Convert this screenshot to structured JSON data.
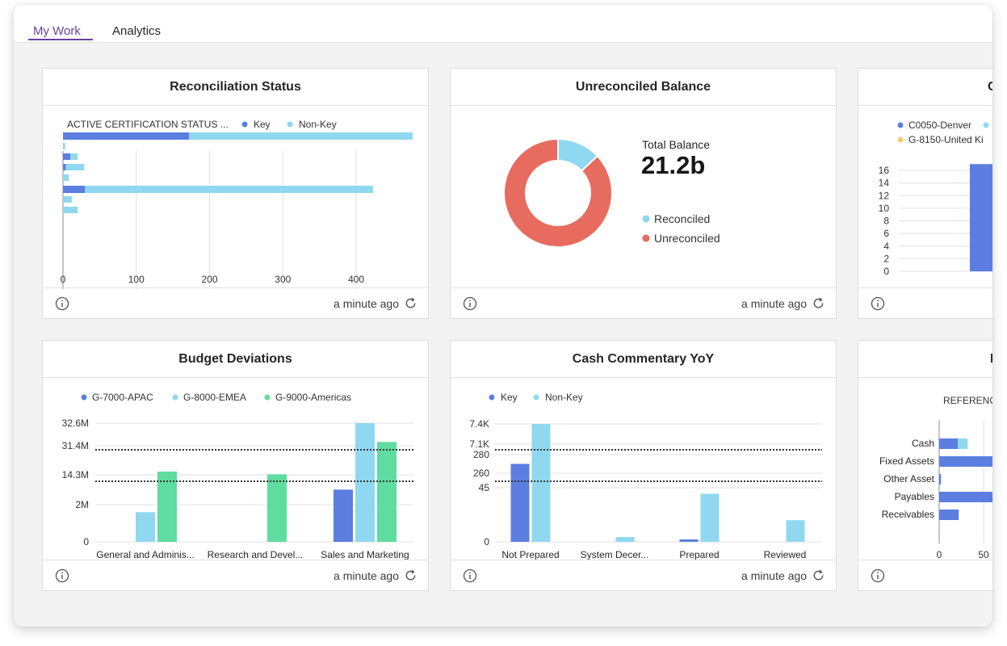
{
  "tabs": [
    {
      "label": "My Work",
      "active": true
    },
    {
      "label": "Analytics",
      "active": false
    }
  ],
  "colors": {
    "accent": "#6b3fa0",
    "key": "#5b7ee0",
    "non_key": "#8fd8f0",
    "americas": "#5fdc9f",
    "reconciled": "#8fd8f0",
    "unreconciled": "#e86b5f",
    "reference": "#8fd8f0",
    "denver": "#5b7ee0",
    "united_kingdom": "#f2cf6a"
  },
  "footer_text": "a minute ago",
  "cards": {
    "reconciliation_status": {
      "title": "Reconciliation Status",
      "legend_title": "ACTIVE CERTIFICATION STATUS ...",
      "legend": [
        "Key",
        "Non-Key"
      ]
    },
    "unreconciled_balance": {
      "title": "Unreconciled Balance",
      "total_label": "Total Balance",
      "total_value": "21.2b",
      "legend": [
        "Reconciled",
        "Unreconciled"
      ]
    },
    "third_card": {
      "title": "C",
      "legend": [
        "C0050-Denver",
        "G-8150-United Ki"
      ]
    },
    "budget_deviations": {
      "title": "Budget Deviations",
      "legend": [
        "G-7000-APAC",
        "G-8000-EMEA",
        "G-9000-Americas"
      ]
    },
    "cash_commentary": {
      "title": "Cash Commentary YoY",
      "legend": [
        "Key",
        "Non-Key"
      ]
    },
    "sixth_card": {
      "title": "E",
      "legend_title": "REFERENC"
    }
  },
  "chart_data": [
    {
      "type": "bar",
      "orientation": "horizontal",
      "title": "Reconciliation Status",
      "stacked": true,
      "categories": [
        "",
        "",
        "",
        "",
        "",
        "",
        "",
        ""
      ],
      "series": [
        {
          "name": "Key",
          "values": [
            172,
            0,
            10,
            4,
            0,
            30,
            0,
            0
          ]
        },
        {
          "name": "Non-Key",
          "values": [
            305,
            3,
            10,
            25,
            8,
            393,
            12,
            20
          ]
        }
      ],
      "x_ticks": [
        0,
        100,
        200,
        300,
        400
      ],
      "xlim": [
        0,
        477
      ],
      "grid": true,
      "legend_position": "top"
    },
    {
      "type": "pie",
      "donut": true,
      "title": "Unreconciled Balance",
      "slices": [
        {
          "name": "Reconciled",
          "value": 13
        },
        {
          "name": "Unreconciled",
          "value": 87
        }
      ],
      "total_label": "Total Balance",
      "total_value": "21.2b",
      "legend_position": "right"
    },
    {
      "type": "bar",
      "title": "C",
      "series": [
        {
          "name": "C0050-Denver",
          "values": [
            17
          ]
        }
      ],
      "y_ticks": [
        0,
        2,
        4,
        6,
        8,
        10,
        12,
        14,
        16
      ],
      "ylim": [
        0,
        17
      ],
      "grid": true,
      "legend_position": "top"
    },
    {
      "type": "bar",
      "title": "Budget Deviations",
      "categories": [
        "General and Adminis...",
        "Research and Devel...",
        "Sales and Marketing"
      ],
      "series": [
        {
          "name": "G-7000-APAC",
          "values": [
            null,
            null,
            8.2
          ]
        },
        {
          "name": "G-8000-EMEA",
          "values": [
            1.6,
            null,
            32.6
          ]
        },
        {
          "name": "G-9000-Americas",
          "values": [
            16.2,
            14.6,
            31.6
          ]
        }
      ],
      "y_ticks": [
        "0",
        "2M",
        "14.3M",
        "31.4M",
        "32.6M"
      ],
      "broken_axis": true,
      "grid": true,
      "legend_position": "top"
    },
    {
      "type": "bar",
      "title": "Cash Commentary YoY",
      "categories": [
        "Not Prepared",
        "System Decer...",
        "Prepared",
        "Reviewed"
      ],
      "series": [
        {
          "name": "Key",
          "values": [
            270,
            0,
            2,
            0
          ]
        },
        {
          "name": "Non-Key",
          "values": [
            7400,
            4,
            40,
            18
          ]
        }
      ],
      "y_ticks": [
        "0",
        "45",
        "260",
        "280",
        "7.1K",
        "7.4K"
      ],
      "broken_axis": true,
      "grid": true,
      "legend_position": "top"
    },
    {
      "type": "bar",
      "orientation": "horizontal",
      "stacked": true,
      "title": "E",
      "categories": [
        "Cash",
        "Fixed Assets",
        "Other Asset",
        "Payables",
        "Receivables"
      ],
      "series": [
        {
          "name": "",
          "values": [
            21,
            70,
            2,
            70,
            22
          ]
        },
        {
          "name": "REFERENC",
          "values": [
            11,
            0,
            0,
            0,
            0
          ]
        }
      ],
      "x_ticks": [
        0,
        50
      ],
      "grid": true,
      "legend_position": "top"
    }
  ]
}
